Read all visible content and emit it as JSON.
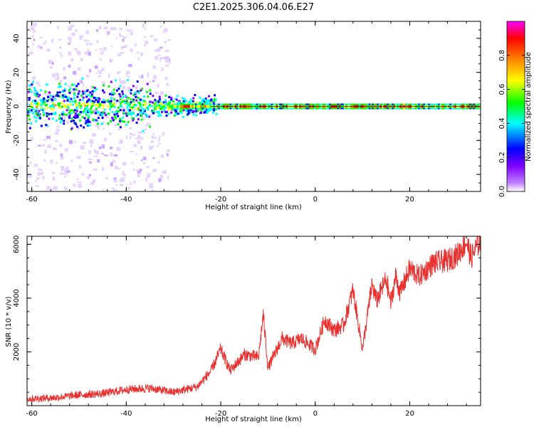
{
  "chart_data": [
    {
      "type": "heatmap",
      "title": "C2E1.2025.306.04.06.E27",
      "xlabel": "Height of straight line (km)",
      "ylabel": "Frequency (Hz)",
      "xlim": [
        -61,
        35
      ],
      "ylim": [
        -50,
        50
      ],
      "x_ticks": [
        "-60",
        "-40",
        "-20",
        "0",
        "20"
      ],
      "y_ticks": [
        "-40",
        "-20",
        "0",
        "20",
        "40"
      ],
      "colorbar": {
        "label": "Normalized spectral amplitude",
        "range": [
          0,
          1
        ],
        "ticks": [
          "0.0",
          "0.2",
          "0.4",
          "0.6",
          "0.8"
        ],
        "colors": [
          "#ffffff",
          "#8000ff",
          "#0000ff",
          "#00ffff",
          "#00ff00",
          "#ffff00",
          "#ff8000",
          "#ff0000",
          "#ff00ff"
        ]
      },
      "band_center_hz": 0,
      "grid": false
    },
    {
      "type": "line",
      "xlabel": "Height of straight line (km)",
      "ylabel": "SNR (10 * v/v)",
      "xlim": [
        -61,
        35
      ],
      "ylim": [
        0,
        6300
      ],
      "x_ticks": [
        "-60",
        "-40",
        "-20",
        "0",
        "20"
      ],
      "y_ticks": [
        "2000",
        "4000",
        "6000"
      ],
      "series": [
        {
          "color": "#e8302f",
          "x": [
            -61,
            -55,
            -50,
            -45,
            -40,
            -35,
            -30,
            -25,
            -22,
            -20,
            -18,
            -15,
            -12,
            -11,
            -10,
            -7,
            -5,
            -3,
            0,
            2,
            4,
            6,
            8,
            10,
            12,
            13,
            15,
            16,
            17,
            18,
            20,
            22,
            25,
            28,
            30,
            32,
            33,
            35
          ],
          "y": [
            250,
            300,
            400,
            450,
            600,
            650,
            500,
            700,
            1300,
            2100,
            1300,
            1900,
            1800,
            3400,
            1400,
            2500,
            2300,
            2500,
            2100,
            3200,
            2800,
            3000,
            4300,
            2100,
            4500,
            3900,
            4700,
            3800,
            4800,
            4200,
            5100,
            4800,
            5300,
            5400,
            5600,
            6100,
            5500,
            6200
          ]
        }
      ],
      "grid": false
    }
  ]
}
